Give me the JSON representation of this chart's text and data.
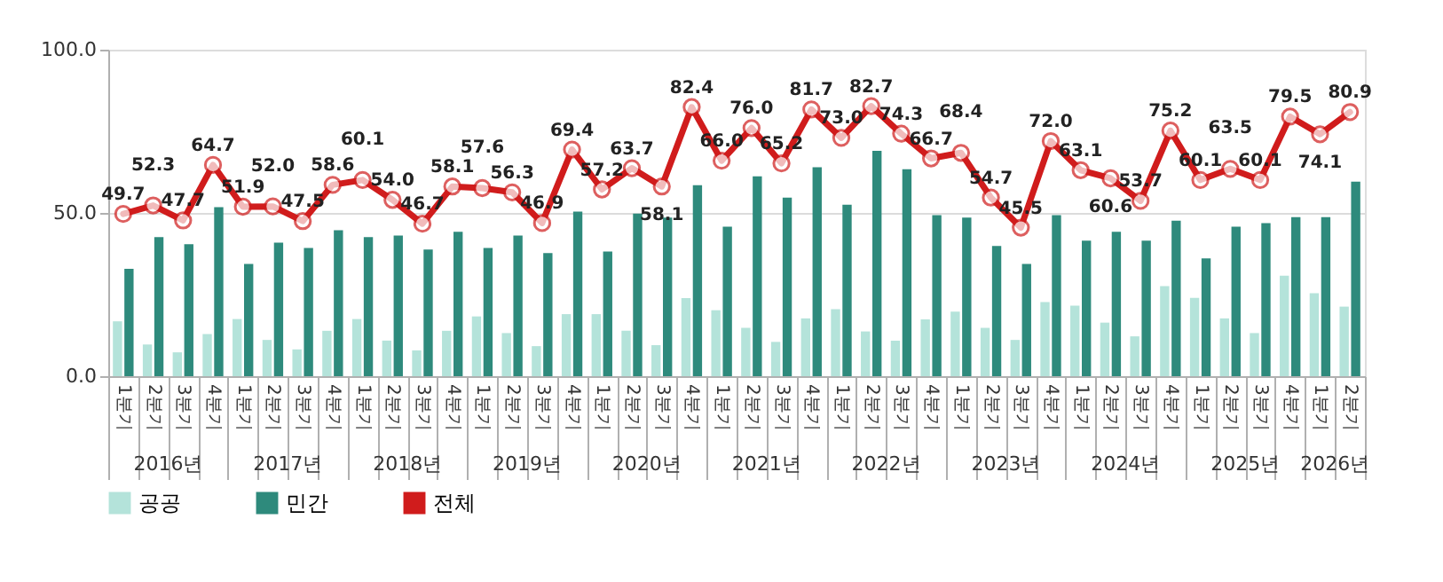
{
  "chart_data": {
    "type": "bar",
    "categories": [
      "1분기",
      "2분기",
      "3분기",
      "4분기",
      "1분기",
      "2분기",
      "3분기",
      "4분기",
      "1분기",
      "2분기",
      "3분기",
      "4분기",
      "1분기",
      "2분기",
      "3분기",
      "4분기",
      "1분기",
      "2분기",
      "3분기",
      "4분기",
      "1분기",
      "2분기",
      "3분기",
      "4분기",
      "1분기",
      "2분기",
      "3분기",
      "4분기",
      "1분기",
      "2분기",
      "3분기",
      "4분기",
      "1분기",
      "2분기",
      "3분기",
      "4분기",
      "1분기",
      "2분기",
      "3분기",
      "4분기",
      "1분기",
      "2분기"
    ],
    "annotations": [
      "2016년",
      "2017년",
      "2018년",
      "2019년",
      "2020년",
      "2021년",
      "2022년",
      "2023년",
      "2024년",
      "2025년",
      "2026년"
    ],
    "series": [
      {
        "name": "공공",
        "color": "#b4e3da",
        "values": [
          16.8,
          9.7,
          7.3,
          12.9,
          17.5,
          11.1,
          8.2,
          13.9,
          17.5,
          10.9,
          7.9,
          13.9,
          18.3,
          13.2,
          9.2,
          19.0,
          19.0,
          13.9,
          9.5,
          23.9,
          20.2,
          14.8,
          10.5,
          17.7,
          20.5,
          13.7,
          10.9,
          17.4,
          19.8,
          14.8,
          11.1,
          22.7,
          21.6,
          16.4,
          12.2,
          27.6,
          24.0,
          17.7,
          13.2,
          30.8,
          25.4,
          21.3
        ]
      },
      {
        "name": "민간",
        "color": "#2e8a7c",
        "values": [
          32.9,
          42.6,
          40.4,
          51.8,
          34.4,
          40.9,
          39.3,
          44.7,
          42.6,
          43.1,
          38.8,
          44.2,
          39.3,
          43.1,
          37.7,
          50.4,
          38.2,
          49.8,
          48.6,
          58.5,
          45.8,
          61.2,
          54.7,
          64.0,
          52.5,
          69.0,
          63.4,
          49.3,
          48.6,
          39.9,
          34.4,
          49.3,
          41.5,
          44.2,
          41.5,
          47.6,
          36.1,
          45.8,
          46.9,
          48.7,
          48.7,
          59.6
        ]
      },
      {
        "name": "전체",
        "type": "line",
        "color": "#d01c1c",
        "marker": "circle",
        "value_labels": [
          "49.7",
          "52.3",
          "47.7",
          "64.7",
          "51.9",
          "52.0",
          "47.5",
          "58.6",
          "60.1",
          "54.0",
          "46.7",
          "58.1",
          "57.6",
          "56.3",
          "46.9",
          "69.4",
          "57.2",
          "63.7",
          "58.1",
          "82.4",
          "66.0",
          "76.0",
          "65.2",
          "81.7",
          "73.0",
          "82.7",
          "74.3",
          "66.7",
          "68.4",
          "54.7",
          "45.5",
          "72.0",
          "63.1",
          "60.6",
          "53.7",
          "75.2",
          "60.1",
          "63.5",
          "60.1",
          "79.5",
          "74.1",
          "80.9"
        ],
        "values": [
          49.7,
          52.3,
          47.7,
          64.7,
          51.9,
          52.0,
          47.5,
          58.6,
          60.1,
          54.0,
          46.7,
          58.1,
          57.6,
          56.3,
          46.9,
          69.4,
          57.2,
          63.7,
          58.1,
          82.4,
          66.0,
          76.0,
          65.2,
          81.7,
          73.0,
          82.7,
          74.3,
          66.7,
          68.4,
          54.7,
          45.5,
          72.0,
          63.1,
          60.6,
          53.7,
          75.2,
          60.1,
          63.5,
          60.1,
          79.5,
          74.1,
          80.9
        ]
      }
    ],
    "ylim": [
      0,
      100
    ],
    "yticks": [
      {
        "value": 0,
        "label": "0.0"
      },
      {
        "value": 50,
        "label": "50.0"
      },
      {
        "value": 100,
        "label": "100.0"
      }
    ],
    "grid": "y",
    "legend": "bottom"
  }
}
